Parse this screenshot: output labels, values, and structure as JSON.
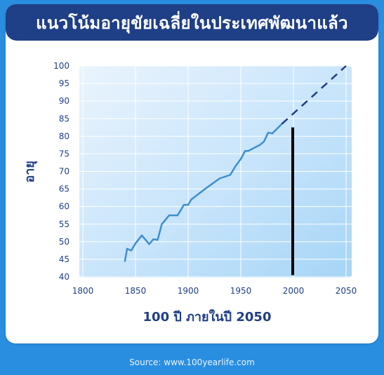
{
  "title": "แนวโน้มอายุขัยเฉลี่ยในประเทศพัฒนาแล้ว",
  "source": "Source: www.100yearlife.com",
  "chart_data": {
    "type": "line",
    "title": "แนวโน้มอายุขัยเฉลี่ยในประเทศพัฒนาแล้ว",
    "xlabel": "100 ปี ภายในปี 2050",
    "ylabel": "อายุ",
    "xlim": [
      1800,
      2050
    ],
    "ylim": [
      40,
      100
    ],
    "xticks": [
      1800,
      1850,
      1900,
      1950,
      2000,
      2050
    ],
    "yticks": [
      40,
      45,
      50,
      55,
      60,
      65,
      70,
      75,
      80,
      85,
      90,
      95,
      100
    ],
    "grid": true,
    "series": [
      {
        "style": "solid",
        "x": [
          1840,
          1842,
          1846,
          1850,
          1856,
          1863,
          1867,
          1871,
          1875,
          1882,
          1890,
          1896,
          1900,
          1903,
          1916,
          1930,
          1940,
          1945,
          1950,
          1954,
          1957,
          1968,
          1972,
          1976,
          1980,
          1989
        ],
        "y": [
          44.5,
          48,
          47.5,
          49.5,
          51.8,
          49.3,
          50.7,
          50.5,
          55,
          57.5,
          57.5,
          60.5,
          60.5,
          62,
          65,
          68,
          69,
          71.5,
          73.5,
          75.8,
          75.8,
          77.5,
          78.5,
          81,
          80.8,
          83.5
        ],
        "color": "#3b8fd0"
      },
      {
        "style": "dashed",
        "x": [
          1989,
          2050
        ],
        "y": [
          83.5,
          100
        ],
        "color": "#1f3f86"
      }
    ],
    "annotations": [
      {
        "type": "vertical-bar",
        "x": 2000,
        "y_from": 40.5,
        "y_to": 82.5,
        "color": "#000000"
      }
    ]
  },
  "colors": {
    "title_bar": "#1f3f86",
    "background": "#2a8ee0",
    "tick_text": "#1f3f86"
  }
}
